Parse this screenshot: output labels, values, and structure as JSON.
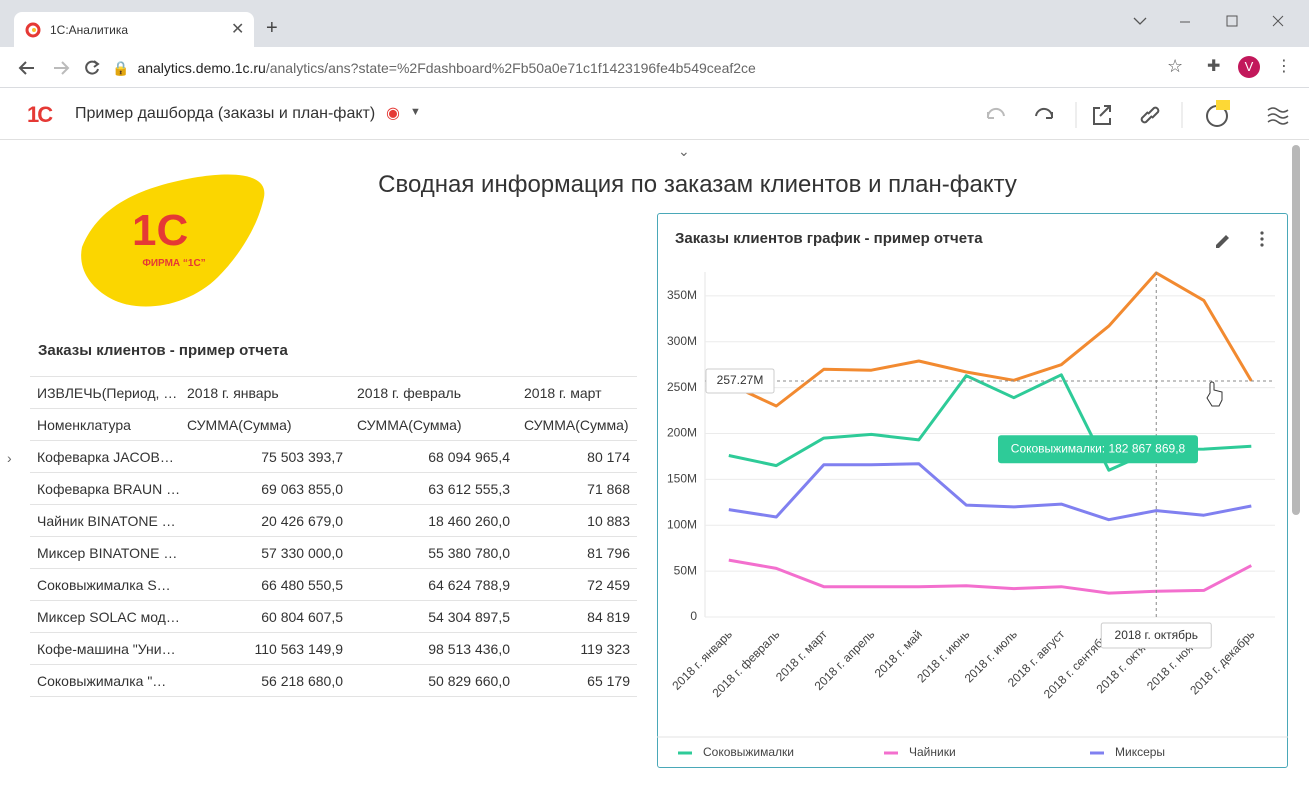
{
  "browser": {
    "tab_title": "1С:Аналитика",
    "url_host": "analytics.demo.1c.ru",
    "url_path": "/analytics/ans?state=%2Fdashboard%2Fb50a0e71c1f1423196fe4b549ceaf2ce",
    "avatar": "V"
  },
  "app": {
    "logo": "1С",
    "title": "Пример дашборда (заказы и план-факт)"
  },
  "dashboard": {
    "title": "Сводная информация по заказам клиентов и план-факту",
    "logo_text": "ФИРМА “1С”"
  },
  "table": {
    "title": "Заказы клиентов - пример отчета",
    "header": [
      "ИЗВЛЕЧЬ(Период, …",
      "2018 г. январь",
      "2018 г. февраль",
      "2018 г. март"
    ],
    "subheader": [
      "Номенклатура",
      "СУММА(Сумма)",
      "СУММА(Сумма)",
      "СУММА(Сумма)"
    ],
    "rows": [
      [
        "Кофеварка JACOB…",
        "75 503 393,7",
        "68 094 965,4",
        "80 174"
      ],
      [
        "Кофеварка BRAUN …",
        "69 063 855,0",
        "63 612 555,3",
        "71 868"
      ],
      [
        "Чайник BINATONE …",
        "20 426 679,0",
        "18 460 260,0",
        "10 883"
      ],
      [
        "Миксер BINATONE …",
        "57 330 000,0",
        "55 380 780,0",
        "81 796"
      ],
      [
        "Соковыжималка S…",
        "66 480 550,5",
        "64 624 788,9",
        "72 459"
      ],
      [
        "Миксер SOLAC мод…",
        "60 804 607,5",
        "54 304 897,5",
        "84 819"
      ],
      [
        "Кофе-машина \"Уни…",
        "110 563 149,9",
        "98 513 436,0",
        "119 323"
      ],
      [
        "Соковыжималка \"…",
        "56 218 680,0",
        "50 829 660,0",
        "65 179"
      ]
    ]
  },
  "chart_data": {
    "type": "line",
    "title": "Заказы клиентов график - пример отчета",
    "categories": [
      "2018 г. январь",
      "2018 г. февраль",
      "2018 г. март",
      "2018 г. апрель",
      "2018 г. май",
      "2018 г. июнь",
      "2018 г. июль",
      "2018 г. август",
      "2018 г. сентябрь",
      "2018 г. октябрь",
      "2018 г. ноябрь",
      "2018 г. декабрь"
    ],
    "series": [
      {
        "name": "Соковыжималки",
        "color": "#2ecb98",
        "values": [
          176000000,
          165000000,
          195000000,
          199000000,
          193000000,
          263000000,
          239000000,
          264000000,
          160000000,
          182867869.8,
          183000000,
          186000000
        ]
      },
      {
        "name": "Чайники",
        "color": "#f36fce",
        "values": [
          62000000,
          53000000,
          33000000,
          33000000,
          33000000,
          34000000,
          31000000,
          33000000,
          26000000,
          28000000,
          29000000,
          56000000
        ]
      },
      {
        "name": "Миксеры",
        "color": "#8080f0",
        "values": [
          117000000,
          109000000,
          166000000,
          166000000,
          167000000,
          122000000,
          120000000,
          123000000,
          106000000,
          116000000,
          111000000,
          121000000
        ]
      },
      {
        "color": "#f28a30",
        "values": [
          254000000,
          230000000,
          270000000,
          269000000,
          279000000,
          267000000,
          258000000,
          275000000,
          317000000,
          375000000,
          345000000,
          257270000
        ]
      }
    ],
    "ylim": [
      0,
      376000000
    ],
    "yticks": [
      0,
      {
        "value": 50000000,
        "label": "50M"
      },
      {
        "value": 100000000,
        "label": "100M"
      },
      {
        "value": 150000000,
        "label": "150M"
      },
      {
        "value": 200000000,
        "label": "200M"
      },
      {
        "value": 250000000,
        "label": "250M"
      },
      {
        "value": 300000000,
        "label": "300M"
      },
      {
        "value": 350000000,
        "label": "350M"
      }
    ],
    "grid": true,
    "crosshair": {
      "x_label": "2018 г. октябрь",
      "y": {
        "value": 257270000,
        "label": "257.27M"
      }
    },
    "tooltip": "Соковыжималки: 182 867 869,8"
  }
}
